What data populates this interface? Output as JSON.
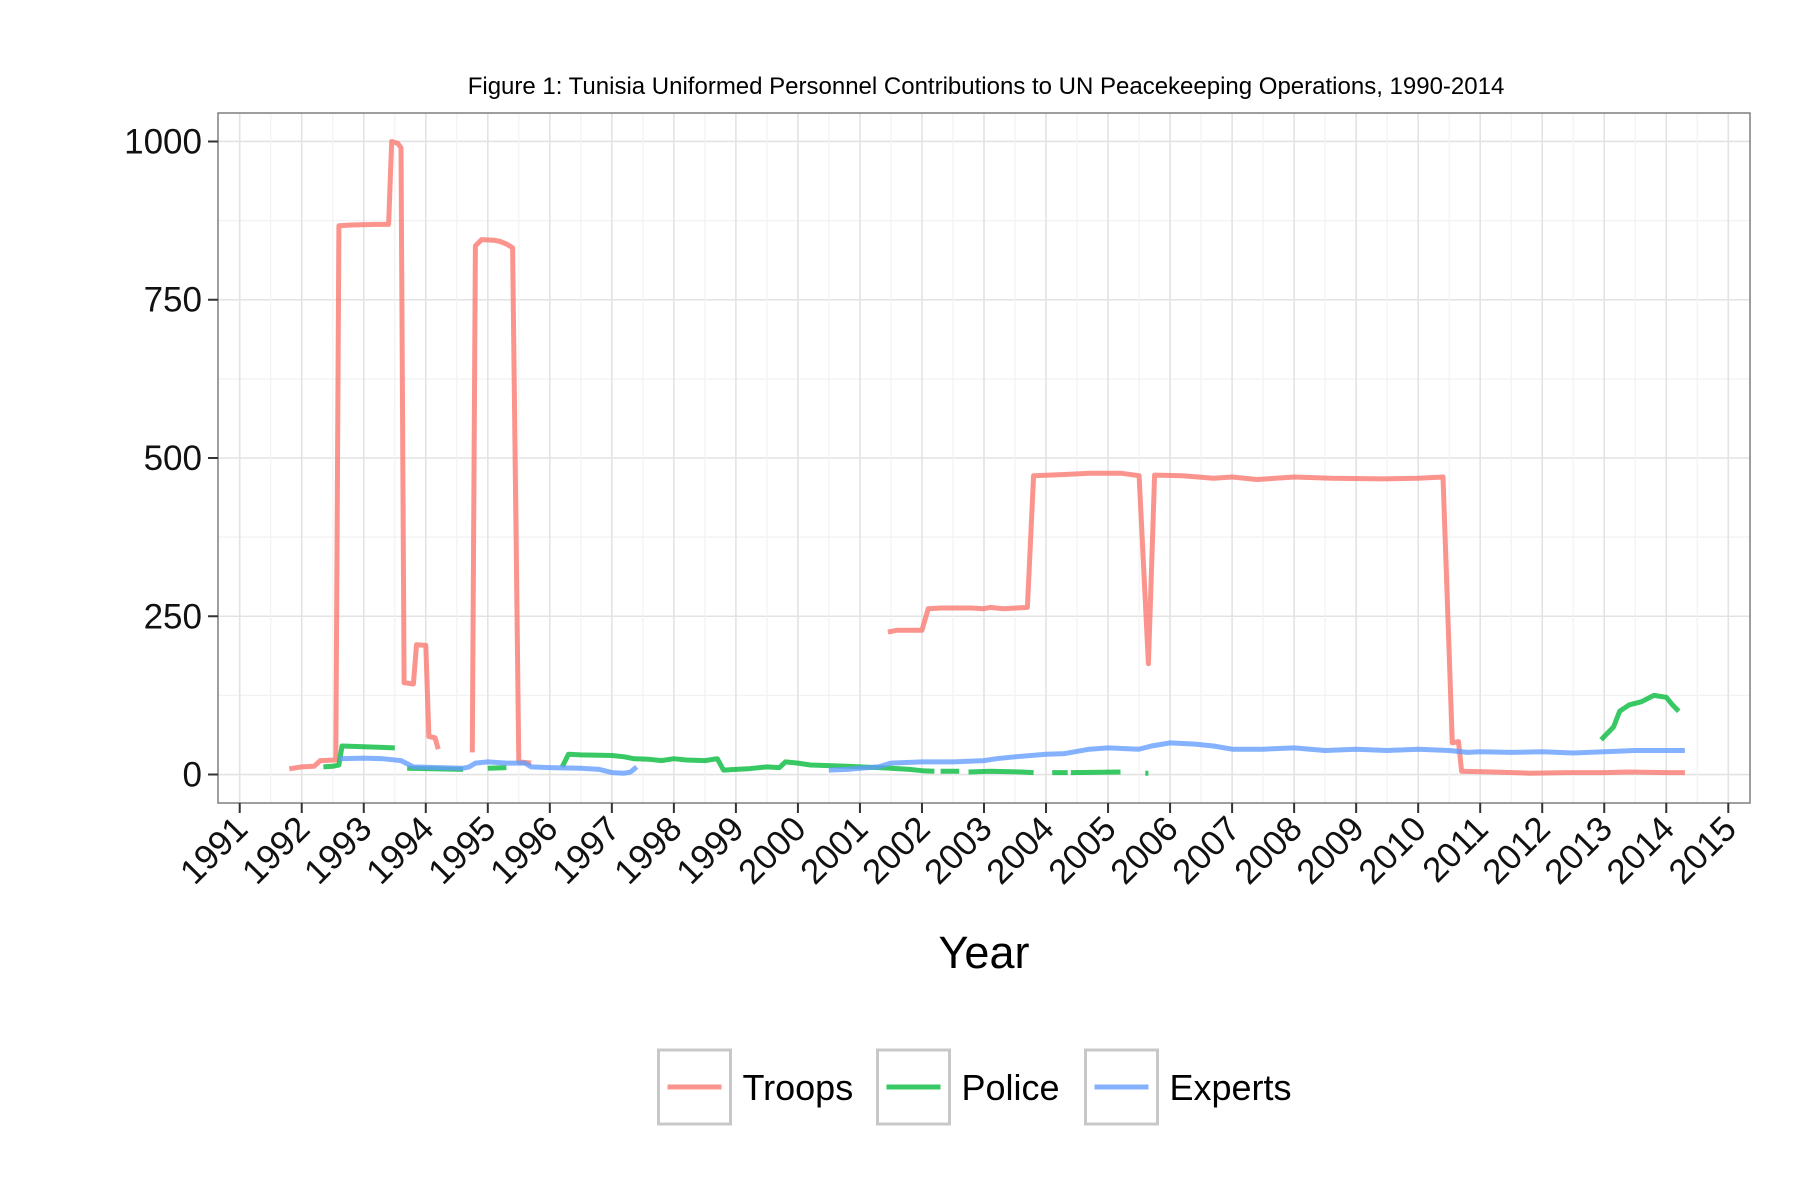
{
  "chart_data": {
    "type": "line",
    "title": "Figure 1: Tunisia Uniformed Personnel Contributions to UN Peacekeeping Operations, 1990-2014",
    "xlabel": "Year",
    "ylabel": "",
    "xlim": [
      1990.65,
      2015.35
    ],
    "ylim": [
      -45,
      1045
    ],
    "x_ticks": [
      "1991",
      "1992",
      "1993",
      "1994",
      "1995",
      "1996",
      "1997",
      "1998",
      "1999",
      "2000",
      "2001",
      "2002",
      "2003",
      "2004",
      "2005",
      "2006",
      "2007",
      "2008",
      "2009",
      "2010",
      "2011",
      "2012",
      "2013",
      "2014",
      "2015"
    ],
    "y_ticks": [
      "0",
      "250",
      "500",
      "750",
      "1000"
    ],
    "grid": true,
    "legend_position": "bottom",
    "series": [
      {
        "name": "Troops",
        "color": "#F8766D",
        "segments": [
          [
            [
              1991.8,
              9
            ],
            [
              1992.0,
              12
            ],
            [
              1992.2,
              13
            ],
            [
              1992.3,
              22
            ],
            [
              1992.55,
              23
            ],
            [
              1992.6,
              867
            ],
            [
              1992.8,
              868
            ],
            [
              1993.2,
              869
            ],
            [
              1993.4,
              869
            ],
            [
              1993.45,
              1000
            ],
            [
              1993.55,
              997
            ],
            [
              1993.6,
              990
            ],
            [
              1993.65,
              145
            ],
            [
              1993.8,
              143
            ],
            [
              1993.85,
              205
            ],
            [
              1994.0,
              204
            ],
            [
              1994.05,
              60
            ],
            [
              1994.15,
              58
            ],
            [
              1994.2,
              40
            ]
          ],
          [
            [
              1994.75,
              35
            ],
            [
              1994.8,
              835
            ],
            [
              1994.9,
              845
            ],
            [
              1995.1,
              844
            ],
            [
              1995.2,
              842
            ],
            [
              1995.3,
              838
            ],
            [
              1995.4,
              832
            ],
            [
              1995.5,
              20
            ],
            [
              1995.7,
              18
            ]
          ],
          [
            [
              2001.45,
              225
            ],
            [
              2001.6,
              228
            ],
            [
              2002.0,
              228
            ],
            [
              2002.1,
              262
            ],
            [
              2002.3,
              263
            ],
            [
              2002.8,
              263
            ],
            [
              2003.0,
              262
            ],
            [
              2003.1,
              264
            ],
            [
              2003.3,
              262
            ],
            [
              2003.7,
              264
            ],
            [
              2003.8,
              472
            ],
            [
              2004.3,
              474
            ],
            [
              2004.7,
              476
            ],
            [
              2005.2,
              476
            ],
            [
              2005.5,
              472
            ],
            [
              2005.65,
              175
            ],
            [
              2005.75,
              473
            ],
            [
              2006.2,
              472
            ],
            [
              2006.7,
              468
            ],
            [
              2007.0,
              470
            ],
            [
              2007.4,
              466
            ],
            [
              2007.7,
              468
            ],
            [
              2008.0,
              470
            ],
            [
              2008.6,
              468
            ],
            [
              2009.4,
              467
            ],
            [
              2010.0,
              468
            ],
            [
              2010.4,
              470
            ],
            [
              2010.55,
              50
            ],
            [
              2010.65,
              52
            ],
            [
              2010.7,
              5
            ],
            [
              2011.2,
              4
            ],
            [
              2011.8,
              2
            ],
            [
              2012.4,
              3
            ],
            [
              2013.0,
              3
            ],
            [
              2013.4,
              4
            ],
            [
              2014.0,
              3
            ],
            [
              2014.3,
              3
            ]
          ]
        ]
      },
      {
        "name": "Police",
        "color": "#00BA38",
        "segments": [
          [
            [
              1992.35,
              12
            ],
            [
              1992.5,
              13
            ],
            [
              1992.6,
              15
            ],
            [
              1992.65,
              45
            ],
            [
              1993.0,
              44
            ],
            [
              1993.5,
              42
            ]
          ],
          [
            [
              1993.7,
              10
            ],
            [
              1994.6,
              8
            ]
          ],
          [
            [
              1995.0,
              10
            ],
            [
              1995.3,
              11
            ]
          ],
          [
            [
              1996.2,
              12
            ],
            [
              1996.3,
              32
            ],
            [
              1996.5,
              31
            ],
            [
              1997.0,
              30
            ],
            [
              1997.2,
              28
            ],
            [
              1997.35,
              25
            ],
            [
              1997.6,
              24
            ],
            [
              1997.8,
              22
            ],
            [
              1998.0,
              25
            ],
            [
              1998.2,
              23
            ],
            [
              1998.5,
              22
            ],
            [
              1998.7,
              25
            ],
            [
              1998.8,
              7
            ],
            [
              1999.0,
              8
            ],
            [
              1999.2,
              9
            ],
            [
              1999.5,
              12
            ],
            [
              1999.7,
              11
            ],
            [
              1999.8,
              20
            ],
            [
              2000.0,
              18
            ],
            [
              2000.2,
              15
            ],
            [
              2000.8,
              13
            ],
            [
              2001.0,
              12
            ],
            [
              2001.5,
              10
            ],
            [
              2001.8,
              8
            ],
            [
              2002.0,
              6
            ],
            [
              2002.2,
              5
            ]
          ],
          [
            [
              2002.3,
              5
            ],
            [
              2002.6,
              5
            ]
          ],
          [
            [
              2002.75,
              4
            ],
            [
              2003.1,
              5
            ],
            [
              2003.6,
              4
            ],
            [
              2003.8,
              3
            ]
          ],
          [
            [
              2004.1,
              3
            ],
            [
              2004.35,
              3
            ]
          ],
          [
            [
              2004.4,
              3
            ],
            [
              2005.2,
              4
            ]
          ],
          [
            [
              2005.6,
              2
            ],
            [
              2005.65,
              2
            ]
          ],
          [
            [
              2012.95,
              55
            ],
            [
              2013.05,
              65
            ],
            [
              2013.15,
              75
            ],
            [
              2013.25,
              100
            ],
            [
              2013.4,
              110
            ],
            [
              2013.6,
              115
            ],
            [
              2013.8,
              125
            ],
            [
              2014.0,
              122
            ],
            [
              2014.1,
              110
            ],
            [
              2014.2,
              100
            ]
          ]
        ]
      },
      {
        "name": "Experts",
        "color": "#619CFF",
        "segments": [
          [
            [
              1992.6,
              25
            ],
            [
              1993.0,
              26
            ],
            [
              1993.3,
              25
            ],
            [
              1993.6,
              22
            ],
            [
              1993.8,
              12
            ],
            [
              1994.2,
              11
            ],
            [
              1994.6,
              10
            ],
            [
              1994.7,
              12
            ],
            [
              1994.8,
              18
            ],
            [
              1995.0,
              20
            ],
            [
              1995.3,
              18
            ],
            [
              1995.6,
              18
            ],
            [
              1995.7,
              12
            ],
            [
              1996.0,
              11
            ],
            [
              1996.5,
              10
            ],
            [
              1996.8,
              8
            ],
            [
              1997.0,
              3
            ],
            [
              1997.2,
              2
            ],
            [
              1997.3,
              4
            ],
            [
              1997.4,
              12
            ]
          ],
          [
            [
              2000.5,
              7
            ],
            [
              2000.8,
              8
            ],
            [
              2001.0,
              10
            ],
            [
              2001.3,
              12
            ],
            [
              2001.5,
              18
            ],
            [
              2002.0,
              20
            ],
            [
              2002.5,
              20
            ],
            [
              2003.0,
              22
            ],
            [
              2003.2,
              25
            ],
            [
              2003.5,
              28
            ],
            [
              2004.0,
              32
            ],
            [
              2004.3,
              33
            ],
            [
              2004.7,
              40
            ],
            [
              2005.0,
              42
            ],
            [
              2005.5,
              40
            ],
            [
              2005.7,
              45
            ],
            [
              2006.0,
              50
            ],
            [
              2006.4,
              48
            ],
            [
              2006.7,
              45
            ],
            [
              2007.0,
              40
            ],
            [
              2007.5,
              40
            ],
            [
              2008.0,
              42
            ],
            [
              2008.5,
              38
            ],
            [
              2009.0,
              40
            ],
            [
              2009.5,
              38
            ],
            [
              2010.0,
              40
            ],
            [
              2010.5,
              38
            ],
            [
              2010.8,
              35
            ],
            [
              2011.0,
              36
            ],
            [
              2011.5,
              35
            ],
            [
              2012.0,
              36
            ],
            [
              2012.5,
              34
            ],
            [
              2013.0,
              36
            ],
            [
              2013.5,
              38
            ],
            [
              2014.0,
              38
            ],
            [
              2014.3,
              38
            ]
          ]
        ]
      }
    ]
  }
}
